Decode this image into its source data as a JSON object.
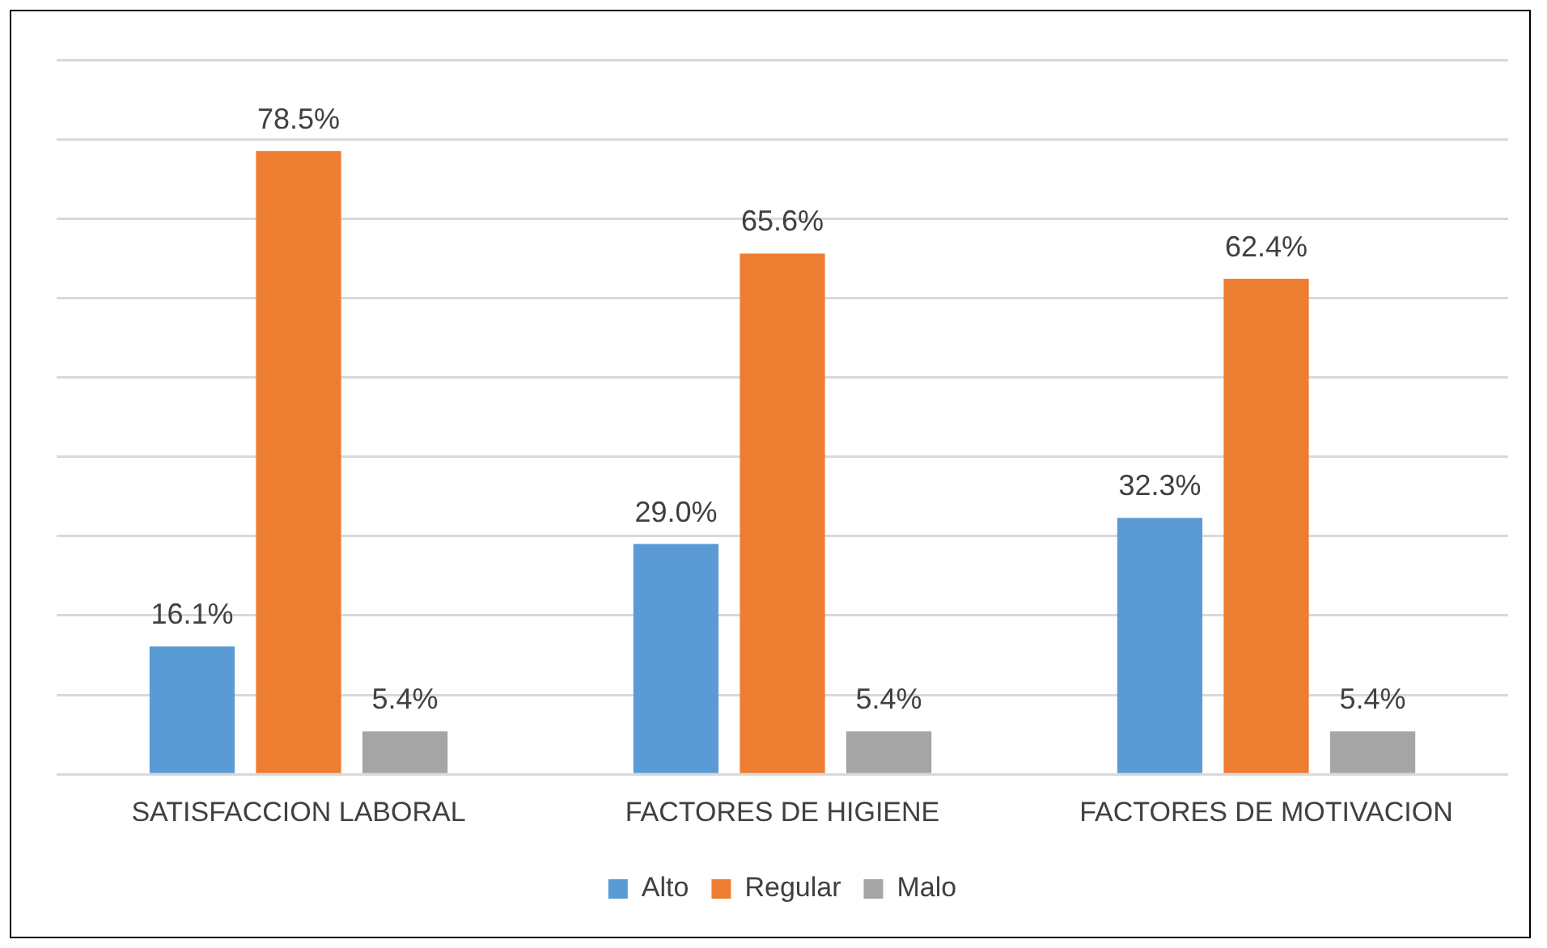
{
  "chart_data": {
    "type": "bar",
    "categories": [
      "SATISFACCION LABORAL",
      "FACTORES DE HIGIENE",
      "FACTORES DE MOTIVACION"
    ],
    "series": [
      {
        "name": "Alto",
        "color": "#5b9bd5",
        "values": [
          16.1,
          29.0,
          32.3
        ],
        "value_labels": [
          "16.1%",
          "29.0%",
          "32.3%"
        ]
      },
      {
        "name": "Regular",
        "color": "#ed7d31",
        "values": [
          78.5,
          65.6,
          62.4
        ],
        "value_labels": [
          "78.5%",
          "65.6%",
          "62.4%"
        ]
      },
      {
        "name": "Malo",
        "color": "#a5a5a5",
        "values": [
          5.4,
          5.4,
          5.4
        ],
        "value_labels": [
          "5.4%",
          "5.4%",
          "5.4%"
        ]
      }
    ],
    "ylim": [
      0,
      90
    ],
    "yticks": [
      {
        "value": 0,
        "label": null
      },
      {
        "value": 10,
        "label": null
      },
      {
        "value": 20,
        "label": null
      },
      {
        "value": 30,
        "label": null
      },
      {
        "value": 40,
        "label": null
      },
      {
        "value": 50,
        "label": null
      },
      {
        "value": 60,
        "label": null
      },
      {
        "value": 70,
        "label": null
      },
      {
        "value": 80,
        "label": null
      },
      {
        "value": 90,
        "label": null
      }
    ],
    "grid": "y",
    "legend": "bottom",
    "tick_labels": "x"
  }
}
